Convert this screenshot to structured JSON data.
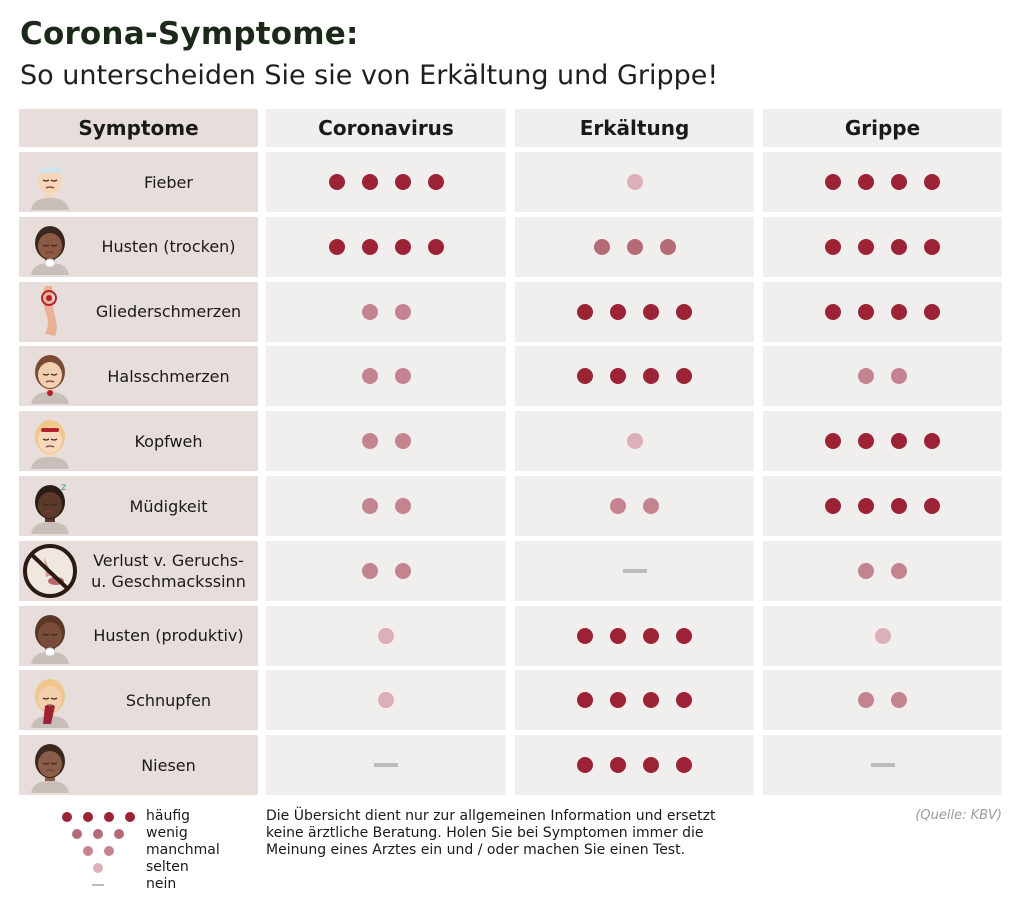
{
  "title": "Corona-Symptome:",
  "subtitle": "So unterscheiden Sie sie von Erkältung und Grippe!",
  "header": {
    "symptom_col": "Symptome",
    "columns": [
      "Coronavirus",
      "Erkältung",
      "Grippe"
    ]
  },
  "colors": {
    "haeufig": "#9b2335",
    "wenig": "#b56a78",
    "manchmal": "#c4848f",
    "selten": "#dcb0b8",
    "nein": "#bbbbbb",
    "symptom_bg": "#e7dedb",
    "cell_bg": "#f1eeee"
  },
  "rows": [
    {
      "label": "Fieber",
      "icon": "fever-face-icon"
    },
    {
      "label": "Husten (trocken)",
      "icon": "dry-cough-face-icon"
    },
    {
      "label": "Gliederschmerzen",
      "icon": "aching-leg-icon"
    },
    {
      "label": "Halsschmerzen",
      "icon": "sore-throat-face-icon"
    },
    {
      "label": "Kopfweh",
      "icon": "headache-face-icon"
    },
    {
      "label": "Müdigkeit",
      "icon": "tired-face-icon"
    },
    {
      "label": "Verlust v. Geruchs- u. Geschmackssinn",
      "icon": "no-smell-taste-icon"
    },
    {
      "label": "Husten (produktiv)",
      "icon": "productive-cough-face-icon"
    },
    {
      "label": "Schnupfen",
      "icon": "runny-nose-face-icon"
    },
    {
      "label": "Niesen",
      "icon": "sneezing-face-icon"
    }
  ],
  "chart_data": {
    "type": "table",
    "title": "Corona-Symptome:",
    "subtitle": "So unterscheiden Sie sie von Erkältung und Grippe!",
    "columns": [
      "Coronavirus",
      "Erkältung",
      "Grippe"
    ],
    "scale": {
      "4": "häufig",
      "3": "wenig",
      "2": "manchmal",
      "1": "selten",
      "0": "nein"
    },
    "rows": [
      "Fieber",
      "Husten (trocken)",
      "Gliederschmerzen",
      "Halsschmerzen",
      "Kopfweh",
      "Müdigkeit",
      "Verlust v. Geruchs- u. Geschmackssinn",
      "Husten (produktiv)",
      "Schnupfen",
      "Niesen"
    ],
    "values": [
      [
        4,
        1,
        4
      ],
      [
        4,
        3,
        4
      ],
      [
        2,
        4,
        4
      ],
      [
        2,
        4,
        2
      ],
      [
        2,
        1,
        4
      ],
      [
        2,
        2,
        4
      ],
      [
        2,
        0,
        2
      ],
      [
        1,
        4,
        1
      ],
      [
        1,
        4,
        2
      ],
      [
        0,
        4,
        0
      ]
    ]
  },
  "legend": {
    "items": [
      {
        "label": "häufig",
        "level": 4
      },
      {
        "label": "wenig",
        "level": 3
      },
      {
        "label": "manchmal",
        "level": 2
      },
      {
        "label": "selten",
        "level": 1
      },
      {
        "label": "nein",
        "level": 0
      }
    ]
  },
  "note": "Die Übersicht dient nur zur allgemeinen Information und ersetzt keine ärztliche Beratung. Holen Sie bei Symptomen immer die Meinung eines Arztes ein und / oder machen Sie einen Test.",
  "source": "(Quelle: KBV)"
}
